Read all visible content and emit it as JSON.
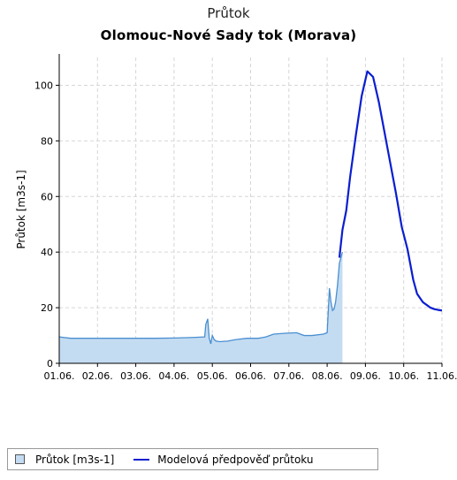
{
  "chart_data": {
    "type": "area",
    "title": "Průtok",
    "subtitle": "Olomouc-Nové Sady tok (Morava)",
    "ylabel": "Průtok [m3s-1]",
    "xlabel": "",
    "ylim": [
      0,
      110
    ],
    "yticks": [
      0,
      20,
      40,
      60,
      80,
      100
    ],
    "xlim": [
      0,
      10
    ],
    "xtick_labels": [
      "01.06.",
      "02.06.",
      "03.06.",
      "04.06.",
      "05.06.",
      "06.06.",
      "07.06.",
      "08.06.",
      "09.06.",
      "10.06.",
      "11.06."
    ],
    "grid": true,
    "legend_position": "bottom-left",
    "series": [
      {
        "name": "Průtok  [m3s-1]",
        "kind": "area",
        "color": "#4a8fd0",
        "fill": "#c4dcf2",
        "x": [
          0,
          0.3,
          0.6,
          1.0,
          1.5,
          2.0,
          2.5,
          3.0,
          3.5,
          3.8,
          3.83,
          3.88,
          3.92,
          3.96,
          4.0,
          4.05,
          4.1,
          4.2,
          4.4,
          4.6,
          4.9,
          5.2,
          5.4,
          5.6,
          5.9,
          6.2,
          6.4,
          6.6,
          6.9,
          7.0,
          7.03,
          7.06,
          7.1,
          7.14,
          7.18,
          7.22,
          7.27,
          7.32,
          7.4
        ],
        "y": [
          9.5,
          9,
          9,
          9,
          9,
          9,
          9,
          9.1,
          9.3,
          9.5,
          14,
          16,
          9,
          7,
          10,
          8.5,
          8,
          7.8,
          8,
          8.5,
          9,
          9,
          9.5,
          10.5,
          10.8,
          11,
          10,
          10,
          10.5,
          11,
          19,
          27,
          22,
          19,
          19.5,
          22,
          28,
          36,
          40
        ]
      },
      {
        "name": "Modelová předpověď průtoku",
        "kind": "line",
        "color": "#0a1ed0",
        "x": [
          7.32,
          7.4,
          7.5,
          7.6,
          7.75,
          7.9,
          8.05,
          8.2,
          8.35,
          8.5,
          8.65,
          8.8,
          8.95,
          9.1,
          9.25,
          9.35,
          9.45,
          9.5,
          9.55,
          9.6,
          9.7,
          9.8,
          9.9,
          10.0
        ],
        "y": [
          38,
          48,
          55,
          67,
          82,
          96,
          105,
          103,
          94,
          83,
          72,
          61,
          49,
          41,
          30,
          25,
          23,
          22,
          21.5,
          21,
          20,
          19.5,
          19.2,
          19
        ]
      }
    ]
  }
}
